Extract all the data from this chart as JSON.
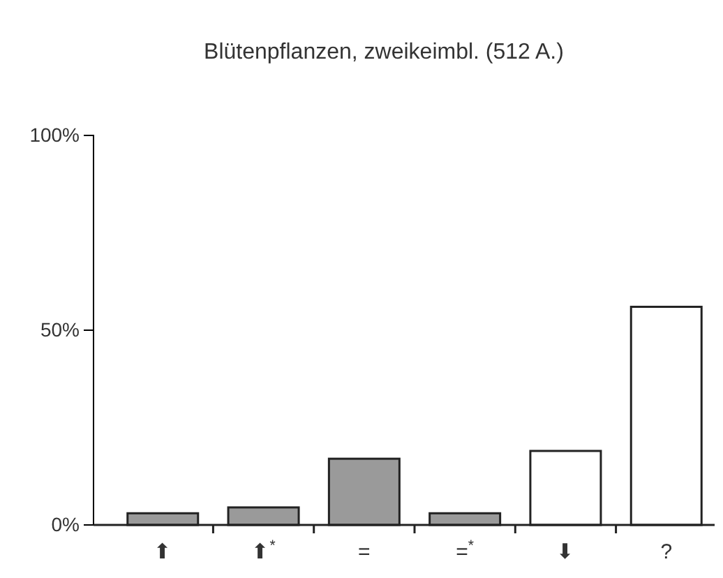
{
  "chart_data": {
    "type": "bar",
    "title": "Blütenpflanzen, zweikeimbl. (512 A.)",
    "categories": [
      "⬆",
      "⬆$^{*}$",
      "=",
      "=$^{*}$",
      "⬇",
      "?"
    ],
    "values": [
      3,
      4.5,
      17,
      3,
      19,
      56
    ],
    "colors": [
      "#9a9a9a",
      "#9a9a9a",
      "#9a9a9a",
      "#9a9a9a",
      "#ffffff",
      "#ffffff"
    ],
    "ylim": [
      0,
      100
    ],
    "yticks": [
      {
        "value": 0,
        "label": "0%"
      },
      {
        "value": 50,
        "label": "50%"
      },
      {
        "value": 100,
        "label": "100%"
      }
    ],
    "grid": false
  }
}
